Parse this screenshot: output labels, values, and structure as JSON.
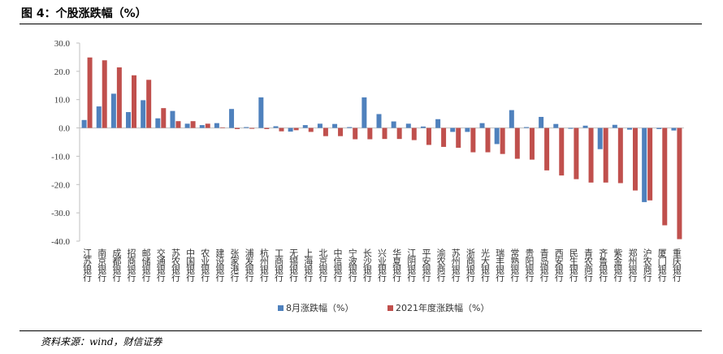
{
  "figure": {
    "title": "图 4：个股涨跌幅（%）",
    "source": "资料来源：wind，财信证券"
  },
  "colors": {
    "series1": "#4f81bd",
    "series2": "#c0504d",
    "axis": "#bfbfbf",
    "text": "#333333"
  },
  "chart_data": {
    "type": "bar",
    "categories": [
      "江苏银行",
      "南京银行",
      "成都银行",
      "招商银行",
      "邮储银行",
      "交通银行",
      "苏农银行",
      "中国银行",
      "农业银行",
      "建设银行",
      "张家港行",
      "浦发银行",
      "杭州银行",
      "工商银行",
      "无锡银行",
      "上海银行",
      "北京银行",
      "中信银行",
      "宁波银行",
      "长沙银行",
      "兴业银行",
      "华夏银行",
      "江阴银行",
      "平安银行",
      "渝农商行",
      "苏州银行",
      "浙商银行",
      "光大银行",
      "瑞丰银行",
      "常熟银行",
      "贵阳银行",
      "青岛银行",
      "西安银行",
      "民生银行",
      "青农商行",
      "齐鲁银行",
      "紫金银行",
      "郑州银行",
      "沪农商行",
      "厦门银行",
      "重庆银行"
    ],
    "series": [
      {
        "name": "8月涨跌幅（%）",
        "values": [
          2.8,
          7.6,
          12.1,
          5.6,
          9.8,
          3.4,
          6.0,
          1.5,
          1.0,
          1.7,
          6.7,
          0.3,
          10.8,
          0.6,
          -1.3,
          1.0,
          1.5,
          1.4,
          0.3,
          10.8,
          4.9,
          2.3,
          1.5,
          0.5,
          3.1,
          -1.4,
          -1.4,
          1.7,
          -5.7,
          6.3,
          0.3,
          3.9,
          1.4,
          -0.3,
          0.8,
          -7.5,
          1.1,
          -0.6,
          -26.2,
          -0.4,
          -0.9
        ]
      },
      {
        "name": "2021年度涨跌幅（%）",
        "values": [
          24.9,
          23.9,
          21.4,
          18.6,
          17.0,
          7.0,
          2.4,
          2.4,
          1.5,
          0.2,
          -0.4,
          -0.3,
          -0.4,
          -1.2,
          -0.8,
          -1.4,
          -2.9,
          -2.9,
          -4.0,
          -4.0,
          -3.9,
          -3.9,
          -4.3,
          -6.0,
          -6.7,
          -7.0,
          -8.6,
          -8.6,
          -9.2,
          -10.9,
          -11.2,
          -15.0,
          -16.8,
          -18.1,
          -19.3,
          -19.3,
          -19.5,
          -22.1,
          -25.6,
          -34.4,
          -39.3
        ]
      }
    ],
    "ylim": [
      -40,
      30
    ],
    "yticks": [
      "30.0",
      "20.0",
      "10.0",
      "0.0",
      "-10.0",
      "-20.0",
      "-30.0",
      "-40.0"
    ],
    "legend_position": "bottom"
  }
}
